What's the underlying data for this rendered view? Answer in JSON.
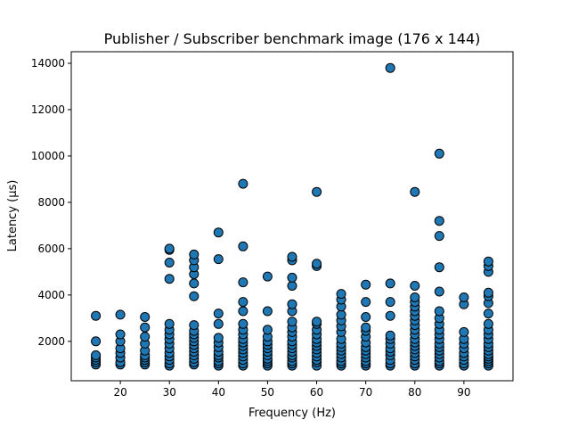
{
  "chart_data": {
    "type": "scatter",
    "title": "Publisher / Subscriber benchmark image (176 x 144)",
    "xlabel": "Frequency (Hz)",
    "ylabel": "Latency (µs)",
    "xlim": [
      10,
      100
    ],
    "ylim": [
      300,
      14500
    ],
    "xticks": [
      20,
      30,
      40,
      50,
      60,
      70,
      80,
      90
    ],
    "yticks": [
      2000,
      4000,
      6000,
      8000,
      10000,
      12000,
      14000
    ],
    "grid": false,
    "marker_color": "#1f77b4",
    "marker_edge": "#000000",
    "series": [
      {
        "points": [
          [
            15,
            1000
          ],
          [
            15,
            1100
          ],
          [
            15,
            1200
          ],
          [
            15,
            1300
          ],
          [
            15,
            1400
          ],
          [
            15,
            2000
          ],
          [
            15,
            3100
          ],
          [
            20,
            1000
          ],
          [
            20,
            1100
          ],
          [
            20,
            1300
          ],
          [
            20,
            1500
          ],
          [
            20,
            1700
          ],
          [
            20,
            2000
          ],
          [
            20,
            2300
          ],
          [
            20,
            3150
          ],
          [
            25,
            1000
          ],
          [
            25,
            1100
          ],
          [
            25,
            1200
          ],
          [
            25,
            1300
          ],
          [
            25,
            1400
          ],
          [
            25,
            1600
          ],
          [
            25,
            1900
          ],
          [
            25,
            2200
          ],
          [
            25,
            2600
          ],
          [
            25,
            3050
          ],
          [
            30,
            950
          ],
          [
            30,
            1050
          ],
          [
            30,
            1200
          ],
          [
            30,
            1350
          ],
          [
            30,
            1500
          ],
          [
            30,
            1700
          ],
          [
            30,
            1900
          ],
          [
            30,
            2100
          ],
          [
            30,
            2300
          ],
          [
            30,
            2500
          ],
          [
            30,
            2750
          ],
          [
            30,
            4700
          ],
          [
            30,
            5400
          ],
          [
            30,
            5950
          ],
          [
            30,
            6000
          ],
          [
            35,
            1000
          ],
          [
            35,
            1100
          ],
          [
            35,
            1250
          ],
          [
            35,
            1400
          ],
          [
            35,
            1550
          ],
          [
            35,
            1700
          ],
          [
            35,
            1850
          ],
          [
            35,
            2000
          ],
          [
            35,
            2150
          ],
          [
            35,
            2300
          ],
          [
            35,
            2450
          ],
          [
            35,
            2700
          ],
          [
            35,
            3950
          ],
          [
            35,
            4500
          ],
          [
            35,
            4900
          ],
          [
            35,
            5200
          ],
          [
            35,
            5500
          ],
          [
            35,
            5750
          ],
          [
            40,
            950
          ],
          [
            40,
            1050
          ],
          [
            40,
            1150
          ],
          [
            40,
            1300
          ],
          [
            40,
            1400
          ],
          [
            40,
            1550
          ],
          [
            40,
            1750
          ],
          [
            40,
            1950
          ],
          [
            40,
            2150
          ],
          [
            40,
            2750
          ],
          [
            40,
            3200
          ],
          [
            40,
            5550
          ],
          [
            40,
            6700
          ],
          [
            45,
            950
          ],
          [
            45,
            1050
          ],
          [
            45,
            1200
          ],
          [
            45,
            1350
          ],
          [
            45,
            1500
          ],
          [
            45,
            1650
          ],
          [
            45,
            1800
          ],
          [
            45,
            1950
          ],
          [
            45,
            2100
          ],
          [
            45,
            2300
          ],
          [
            45,
            2500
          ],
          [
            45,
            2750
          ],
          [
            45,
            3300
          ],
          [
            45,
            3700
          ],
          [
            45,
            4550
          ],
          [
            45,
            6100
          ],
          [
            45,
            8800
          ],
          [
            50,
            950
          ],
          [
            50,
            1050
          ],
          [
            50,
            1150
          ],
          [
            50,
            1250
          ],
          [
            50,
            1400
          ],
          [
            50,
            1550
          ],
          [
            50,
            1700
          ],
          [
            50,
            1850
          ],
          [
            50,
            2000
          ],
          [
            50,
            2200
          ],
          [
            50,
            2500
          ],
          [
            50,
            3300
          ],
          [
            50,
            4800
          ],
          [
            55,
            950
          ],
          [
            55,
            1050
          ],
          [
            55,
            1150
          ],
          [
            55,
            1300
          ],
          [
            55,
            1400
          ],
          [
            55,
            1550
          ],
          [
            55,
            1700
          ],
          [
            55,
            1850
          ],
          [
            55,
            2000
          ],
          [
            55,
            2200
          ],
          [
            55,
            2400
          ],
          [
            55,
            2600
          ],
          [
            55,
            2850
          ],
          [
            55,
            3300
          ],
          [
            55,
            3600
          ],
          [
            55,
            4400
          ],
          [
            55,
            4750
          ],
          [
            55,
            5500
          ],
          [
            55,
            5650
          ],
          [
            60,
            950
          ],
          [
            60,
            1100
          ],
          [
            60,
            1200
          ],
          [
            60,
            1350
          ],
          [
            60,
            1500
          ],
          [
            60,
            1650
          ],
          [
            60,
            1800
          ],
          [
            60,
            1950
          ],
          [
            60,
            2100
          ],
          [
            60,
            2300
          ],
          [
            60,
            2500
          ],
          [
            60,
            2750
          ],
          [
            60,
            2850
          ],
          [
            60,
            5250
          ],
          [
            60,
            5350
          ],
          [
            60,
            8450
          ],
          [
            65,
            950
          ],
          [
            65,
            1050
          ],
          [
            65,
            1150
          ],
          [
            65,
            1300
          ],
          [
            65,
            1450
          ],
          [
            65,
            1600
          ],
          [
            65,
            1750
          ],
          [
            65,
            1900
          ],
          [
            65,
            2100
          ],
          [
            65,
            2400
          ],
          [
            65,
            2650
          ],
          [
            65,
            2900
          ],
          [
            65,
            3150
          ],
          [
            65,
            3500
          ],
          [
            65,
            3800
          ],
          [
            65,
            4050
          ],
          [
            70,
            950
          ],
          [
            70,
            1050
          ],
          [
            70,
            1150
          ],
          [
            70,
            1300
          ],
          [
            70,
            1450
          ],
          [
            70,
            1600
          ],
          [
            70,
            1750
          ],
          [
            70,
            1950
          ],
          [
            70,
            2200
          ],
          [
            70,
            2450
          ],
          [
            70,
            2600
          ],
          [
            70,
            3050
          ],
          [
            70,
            3700
          ],
          [
            70,
            4450
          ],
          [
            75,
            950
          ],
          [
            75,
            1050
          ],
          [
            75,
            1200
          ],
          [
            75,
            1400
          ],
          [
            75,
            1550
          ],
          [
            75,
            1700
          ],
          [
            75,
            1900
          ],
          [
            75,
            2100
          ],
          [
            75,
            2250
          ],
          [
            75,
            3100
          ],
          [
            75,
            3700
          ],
          [
            75,
            4500
          ],
          [
            75,
            13800
          ],
          [
            80,
            950
          ],
          [
            80,
            1050
          ],
          [
            80,
            1200
          ],
          [
            80,
            1350
          ],
          [
            80,
            1500
          ],
          [
            80,
            1650
          ],
          [
            80,
            1800
          ],
          [
            80,
            1950
          ],
          [
            80,
            2100
          ],
          [
            80,
            2300
          ],
          [
            80,
            2500
          ],
          [
            80,
            2700
          ],
          [
            80,
            2900
          ],
          [
            80,
            3100
          ],
          [
            80,
            3300
          ],
          [
            80,
            3500
          ],
          [
            80,
            3700
          ],
          [
            80,
            3900
          ],
          [
            80,
            4400
          ],
          [
            80,
            8450
          ],
          [
            85,
            950
          ],
          [
            85,
            1050
          ],
          [
            85,
            1150
          ],
          [
            85,
            1300
          ],
          [
            85,
            1450
          ],
          [
            85,
            1600
          ],
          [
            85,
            1750
          ],
          [
            85,
            1900
          ],
          [
            85,
            2100
          ],
          [
            85,
            2300
          ],
          [
            85,
            2500
          ],
          [
            85,
            2750
          ],
          [
            85,
            3000
          ],
          [
            85,
            3300
          ],
          [
            85,
            4150
          ],
          [
            85,
            5200
          ],
          [
            85,
            6550
          ],
          [
            85,
            7200
          ],
          [
            85,
            10100
          ],
          [
            90,
            950
          ],
          [
            90,
            1050
          ],
          [
            90,
            1200
          ],
          [
            90,
            1350
          ],
          [
            90,
            1500
          ],
          [
            90,
            1700
          ],
          [
            90,
            1900
          ],
          [
            90,
            2100
          ],
          [
            90,
            2400
          ],
          [
            90,
            3600
          ],
          [
            90,
            3900
          ],
          [
            95,
            950
          ],
          [
            95,
            1050
          ],
          [
            95,
            1150
          ],
          [
            95,
            1250
          ],
          [
            95,
            1350
          ],
          [
            95,
            1450
          ],
          [
            95,
            1600
          ],
          [
            95,
            1750
          ],
          [
            95,
            1900
          ],
          [
            95,
            2100
          ],
          [
            95,
            2300
          ],
          [
            95,
            2500
          ],
          [
            95,
            2750
          ],
          [
            95,
            3200
          ],
          [
            95,
            3650
          ],
          [
            95,
            3950
          ],
          [
            95,
            4100
          ],
          [
            95,
            5000
          ],
          [
            95,
            5250
          ],
          [
            95,
            5450
          ]
        ]
      }
    ]
  }
}
